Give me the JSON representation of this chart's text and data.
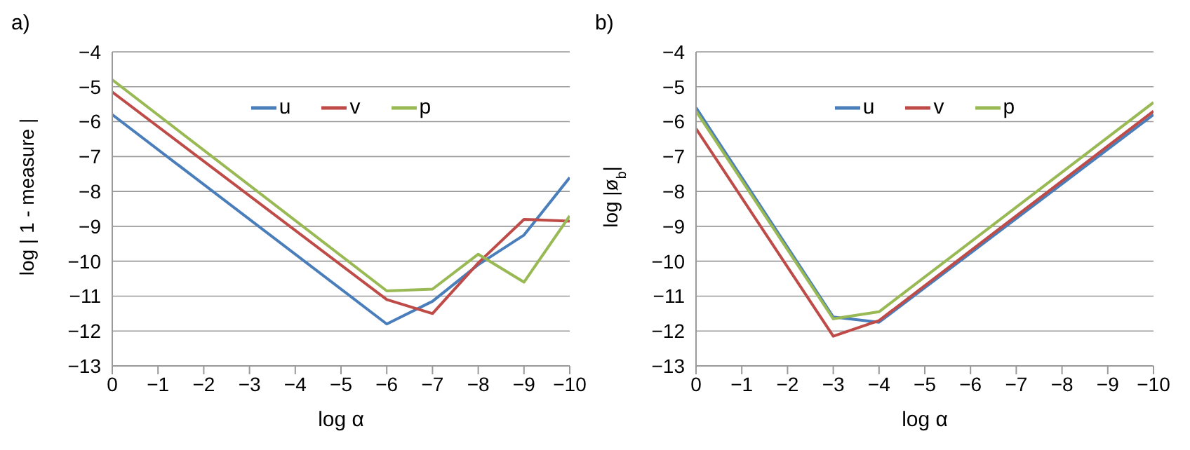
{
  "chart_data": [
    {
      "type": "line",
      "title": "a)",
      "xlabel": "log α",
      "ylabel": "log | 1 - measure |",
      "x": [
        0,
        -6,
        -7,
        -8,
        -9,
        -10
      ],
      "xlim": [
        0,
        -10
      ],
      "xticks": [
        0,
        -1,
        -2,
        -3,
        -4,
        -5,
        -6,
        -7,
        -8,
        -9,
        -10
      ],
      "ylim": [
        -13,
        -4
      ],
      "yticks": [
        -13,
        -12,
        -11,
        -10,
        -9,
        -8,
        -7,
        -6,
        -5,
        -4
      ],
      "grid": "y",
      "legend": "top",
      "marker": "none",
      "series": [
        {
          "name": "u",
          "color": "#4a7ebb",
          "values": [
            -5.8,
            -11.8,
            -11.15,
            -10.1,
            -9.25,
            -7.6
          ]
        },
        {
          "name": "v",
          "color": "#be4b48",
          "values": [
            -5.15,
            -11.1,
            -11.5,
            -10.05,
            -8.8,
            -8.85
          ]
        },
        {
          "name": "p",
          "color": "#98b954",
          "values": [
            -4.8,
            -10.85,
            -10.8,
            -9.8,
            -10.6,
            -8.7
          ]
        }
      ]
    },
    {
      "type": "line",
      "title": "b)",
      "xlabel": "log α",
      "ylabel": "log |ø$_{b}$|",
      "x": [
        0,
        -3,
        -4,
        -10
      ],
      "xlim": [
        0,
        -10
      ],
      "xticks": [
        0,
        -1,
        -2,
        -3,
        -4,
        -5,
        -6,
        -7,
        -8,
        -9,
        -10
      ],
      "ylim": [
        -13,
        -4
      ],
      "yticks": [
        -13,
        -12,
        -11,
        -10,
        -9,
        -8,
        -7,
        -6,
        -5,
        -4
      ],
      "grid": "y",
      "legend": "top",
      "marker": "none",
      "series": [
        {
          "name": "u",
          "color": "#4a7ebb",
          "values": [
            -5.6,
            -11.6,
            -11.75,
            -5.8
          ]
        },
        {
          "name": "v",
          "color": "#be4b48",
          "values": [
            -6.2,
            -12.15,
            -11.7,
            -5.7
          ]
        },
        {
          "name": "p",
          "color": "#98b954",
          "values": [
            -5.7,
            -11.65,
            -11.45,
            -5.45
          ]
        }
      ]
    }
  ]
}
